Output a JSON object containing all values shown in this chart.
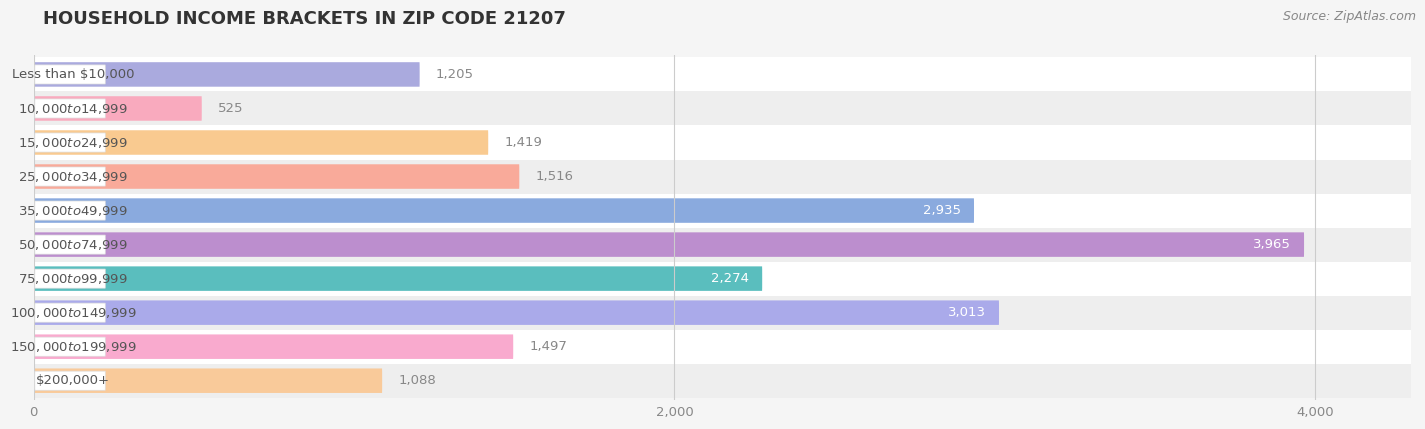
{
  "title": "HOUSEHOLD INCOME BRACKETS IN ZIP CODE 21207",
  "source": "Source: ZipAtlas.com",
  "categories": [
    "Less than $10,000",
    "$10,000 to $14,999",
    "$15,000 to $24,999",
    "$25,000 to $34,999",
    "$35,000 to $49,999",
    "$50,000 to $74,999",
    "$75,000 to $99,999",
    "$100,000 to $149,999",
    "$150,000 to $199,999",
    "$200,000+"
  ],
  "values": [
    1205,
    525,
    1419,
    1516,
    2935,
    3965,
    2274,
    3013,
    1497,
    1088
  ],
  "bar_colors": [
    "#aaaade",
    "#f9aabe",
    "#f9ca90",
    "#f9aa9a",
    "#8aaade",
    "#bc8ece",
    "#5abebe",
    "#aaaaea",
    "#f9aace",
    "#f9ca9a"
  ],
  "row_colors": [
    "#ffffff",
    "#eeeeee"
  ],
  "xlim": [
    0,
    4300
  ],
  "background_color": "#f5f5f5",
  "title_fontsize": 13,
  "label_fontsize": 9.5,
  "value_fontsize": 9.5,
  "source_fontsize": 9
}
